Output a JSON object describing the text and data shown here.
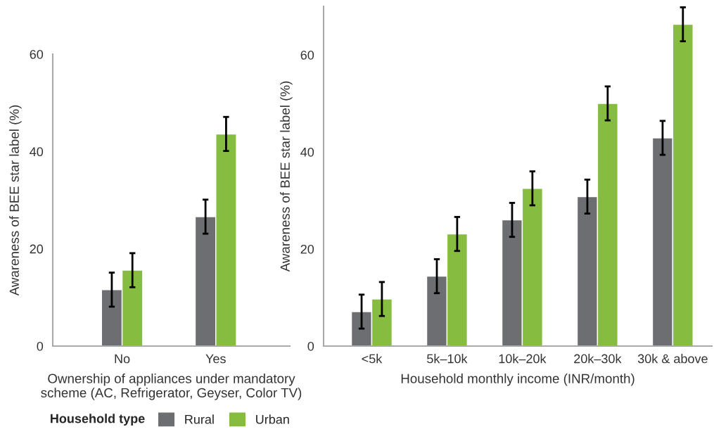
{
  "chart_data": [
    {
      "type": "bar",
      "xlabel": "Ownership of appliances under mandatory\nscheme (AC, Refrigerator, Geyser, Color TV)",
      "ylabel": "Awareness of BEE star label (%)",
      "categories": [
        "No",
        "Yes"
      ],
      "series": [
        {
          "name": "Rural",
          "color": "#6d6e71",
          "values": [
            11.6,
            26.6
          ],
          "errors": [
            3.5,
            3.5
          ]
        },
        {
          "name": "Urban",
          "color": "#86bc3f",
          "values": [
            15.6,
            43.6
          ],
          "errors": [
            3.5,
            3.5
          ]
        }
      ],
      "ylim": [
        0,
        60
      ],
      "yticks": [
        0,
        20,
        40,
        60
      ],
      "grid": false,
      "legend": "bottom",
      "legend_title": "Household type"
    },
    {
      "type": "bar",
      "xlabel": "Household monthly income (INR/month)",
      "ylabel": "Awareness of BEE star label (%)",
      "categories": [
        "<5k",
        "5k–10k",
        "10k–20k",
        "20k–30k",
        "30k & above"
      ],
      "series": [
        {
          "color": "#6d6e71",
          "values": [
            7.1,
            14.4,
            26.0,
            30.8,
            42.9
          ],
          "errors": [
            3.5,
            3.5,
            3.5,
            3.5,
            3.5
          ]
        },
        {
          "color": "#86bc3f",
          "values": [
            9.7,
            23.1,
            32.5,
            50.0,
            66.3
          ],
          "errors": [
            3.5,
            3.5,
            3.5,
            3.5,
            3.5
          ]
        }
      ],
      "ylim": [
        0,
        70
      ],
      "yticks": [
        0,
        20,
        40,
        60
      ],
      "grid": false,
      "legend": false
    }
  ]
}
